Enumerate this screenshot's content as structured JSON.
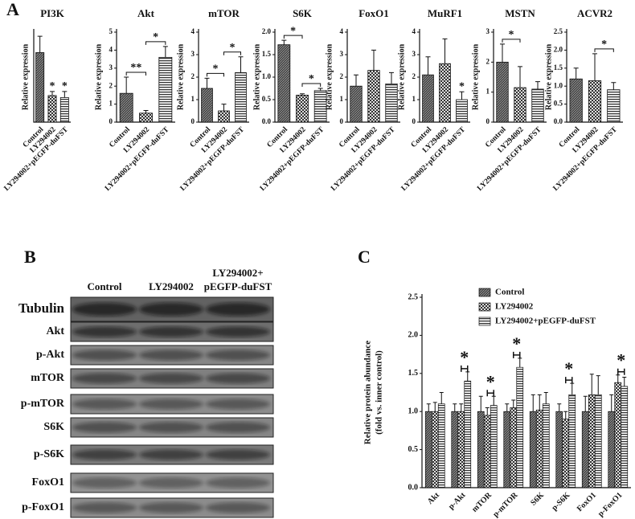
{
  "panel_labels": [
    "A",
    "B",
    "C"
  ],
  "chart_data": [
    {
      "type": "bar",
      "title": "PI3K",
      "ylabel": "Relative expression",
      "categories": [
        "Control",
        "LY294002",
        "LY294002+pEGFP-duFST"
      ],
      "values": [
        1.7,
        0.65,
        0.6
      ],
      "errors": [
        0.4,
        0.1,
        0.15
      ],
      "ylim": [
        0,
        2.2
      ],
      "patterns": [
        "dense",
        "check",
        "stripes"
      ],
      "annotations": [
        {
          "text": "*",
          "bars": [
            1
          ]
        },
        {
          "text": "*",
          "bars": [
            2
          ]
        }
      ]
    },
    {
      "type": "bar",
      "title": "Akt",
      "ylabel": "Relative expression",
      "categories": [
        "Control",
        "LY294002",
        "LY294002+pEGFP-duFST"
      ],
      "values": [
        1.6,
        0.5,
        3.6
      ],
      "errors": [
        0.9,
        0.15,
        0.6
      ],
      "ylim": [
        0,
        5
      ],
      "yticks": [
        0,
        1,
        2,
        3,
        4,
        5
      ],
      "patterns": [
        "dense",
        "check",
        "stripes"
      ],
      "annotations": [
        {
          "text": "**",
          "bars": [
            0,
            1
          ]
        },
        {
          "text": "*",
          "bars": [
            1,
            2
          ]
        }
      ]
    },
    {
      "type": "bar",
      "title": "mTOR",
      "ylabel": "Relative expression",
      "categories": [
        "Control",
        "LY294002",
        "LY294002+pEGFP-duFST"
      ],
      "values": [
        1.5,
        0.5,
        2.2
      ],
      "errors": [
        0.45,
        0.3,
        0.7
      ],
      "ylim": [
        0,
        4
      ],
      "yticks": [
        0,
        1,
        2,
        3,
        4
      ],
      "patterns": [
        "dense",
        "check",
        "stripes"
      ],
      "annotations": [
        {
          "text": "*",
          "bars": [
            0,
            1
          ]
        },
        {
          "text": "*",
          "bars": [
            1,
            2
          ]
        }
      ]
    },
    {
      "type": "bar",
      "title": "S6K",
      "ylabel": "Relative expression",
      "categories": [
        "Control",
        "LY294002",
        "LY294002+pEGFP-duFST"
      ],
      "values": [
        1.72,
        0.6,
        0.7
      ],
      "errors": [
        0.1,
        0.03,
        0.05
      ],
      "ylim": [
        0,
        2
      ],
      "yticks": [
        {
          "value": 0,
          "label": "0.0"
        },
        {
          "value": 0.5,
          "label": "0.5"
        },
        {
          "value": 1,
          "label": "1.0"
        },
        {
          "value": 1.5,
          "label": "1.5"
        },
        {
          "value": 2,
          "label": "2.0"
        }
      ],
      "patterns": [
        "dense",
        "check",
        "stripes"
      ],
      "annotations": [
        {
          "text": "*",
          "bars": [
            0,
            1
          ]
        },
        {
          "text": "*",
          "bars": [
            1,
            2
          ]
        }
      ]
    },
    {
      "type": "bar",
      "title": "FoxO1",
      "ylabel": "Relative expression",
      "categories": [
        "Control",
        "LY294002",
        "LY294002+pEGFP-duFST"
      ],
      "values": [
        1.6,
        2.3,
        1.7
      ],
      "errors": [
        0.5,
        0.9,
        0.5
      ],
      "ylim": [
        0,
        4
      ],
      "yticks": [
        0,
        1,
        2,
        3,
        4
      ],
      "patterns": [
        "dense",
        "check",
        "stripes"
      ],
      "annotations": []
    },
    {
      "type": "bar",
      "title": "MuRF1",
      "ylabel": "Relative expression",
      "categories": [
        "Control",
        "LY294002",
        "LY294002+pEGFP-duFST"
      ],
      "values": [
        2.1,
        2.6,
        1.0
      ],
      "errors": [
        0.8,
        1.1,
        0.35
      ],
      "ylim": [
        0,
        4
      ],
      "yticks": [
        0,
        1,
        2,
        3,
        4
      ],
      "patterns": [
        "dense",
        "check",
        "stripes"
      ],
      "annotations": [
        {
          "text": "*",
          "bars": [
            2
          ]
        }
      ]
    },
    {
      "type": "bar",
      "title": "MSTN",
      "ylabel": "Relative expression",
      "categories": [
        "Control",
        "LY294002",
        "LY294002+pEGFP-duFST"
      ],
      "values": [
        2.0,
        1.15,
        1.1
      ],
      "errors": [
        0.6,
        0.7,
        0.25
      ],
      "ylim": [
        0,
        3
      ],
      "yticks": [
        0,
        1,
        2,
        3
      ],
      "patterns": [
        "dense",
        "check",
        "stripes"
      ],
      "annotations": [
        {
          "text": "*",
          "bars": [
            0,
            1
          ]
        }
      ]
    },
    {
      "type": "bar",
      "title": "ACVR2",
      "ylabel": "Relative expression",
      "categories": [
        "Control",
        "LY294002",
        "LY294002+pEGFP-duFST"
      ],
      "values": [
        1.2,
        1.15,
        0.9
      ],
      "errors": [
        0.3,
        0.75,
        0.2
      ],
      "ylim": [
        0,
        2.5
      ],
      "yticks": [
        {
          "value": 0,
          "label": "0.0"
        },
        {
          "value": 0.5,
          "label": "0.5"
        },
        {
          "value": 1,
          "label": "1.0"
        },
        {
          "value": 1.5,
          "label": "1.5"
        },
        {
          "value": 2,
          "label": "2.0"
        },
        {
          "value": 2.5,
          "label": "2.5"
        }
      ],
      "patterns": [
        "dense",
        "check",
        "stripes"
      ],
      "annotations": [
        {
          "text": "*",
          "bars": [
            1,
            2
          ]
        }
      ]
    },
    {
      "type": "blot",
      "lanes": [
        [
          "Control"
        ],
        [
          "LY294002"
        ],
        [
          "LY294002+",
          "pEGFP-duFST"
        ]
      ],
      "rows": [
        "Tubulin",
        "Akt",
        "p-Akt",
        "mTOR",
        "p-mTOR",
        "S6K",
        "p-S6K",
        "FoxO1",
        "p-FoxO1"
      ]
    },
    {
      "type": "grouped_bar",
      "ylabel": [
        "Relative protein abundance",
        "(fold vs. inner control)"
      ],
      "categories": [
        "Akt",
        "p-Akt",
        "mTOR",
        "p-mTOR",
        "S6K",
        "p-S6K",
        "FoxO1",
        "p-FoxO1"
      ],
      "series": [
        {
          "name": "Control",
          "pattern": "dense",
          "values": [
            1.0,
            1.0,
            1.0,
            1.0,
            1.0,
            1.0,
            1.0,
            1.0
          ],
          "errors": [
            0.1,
            0.1,
            0.2,
            0.1,
            0.22,
            0.1,
            0.2,
            0.22
          ]
        },
        {
          "name": "LY294002",
          "pattern": "check",
          "values": [
            1.0,
            1.0,
            0.95,
            1.05,
            1.02,
            0.9,
            1.22,
            1.38
          ],
          "errors": [
            0.12,
            0.1,
            0.1,
            0.1,
            0.2,
            0.1,
            0.27,
            0.1
          ]
        },
        {
          "name": "LY294002+pEGFP-duFST",
          "pattern": "stripes",
          "values": [
            1.1,
            1.4,
            1.08,
            1.58,
            1.1,
            1.22,
            1.22,
            1.33
          ],
          "errors": [
            0.15,
            0.12,
            0.12,
            0.12,
            0.15,
            0.15,
            0.25,
            0.12
          ]
        }
      ],
      "ylim": [
        0,
        2.5
      ],
      "yticks": [
        {
          "value": 0,
          "label": "0.0"
        },
        {
          "value": 0.5,
          "label": "0.5"
        },
        {
          "value": 1,
          "label": "1.0"
        },
        {
          "value": 1.5,
          "label": "1.5"
        },
        {
          "value": 2,
          "label": "2.0"
        },
        {
          "value": 2.5,
          "label": "2.5"
        }
      ],
      "annotations": [
        {
          "text": "*",
          "category": 1
        },
        {
          "text": "*",
          "category": 2
        },
        {
          "text": "*",
          "category": 3
        },
        {
          "text": "*",
          "category": 5
        },
        {
          "text": "*",
          "category": 7
        }
      ]
    }
  ]
}
